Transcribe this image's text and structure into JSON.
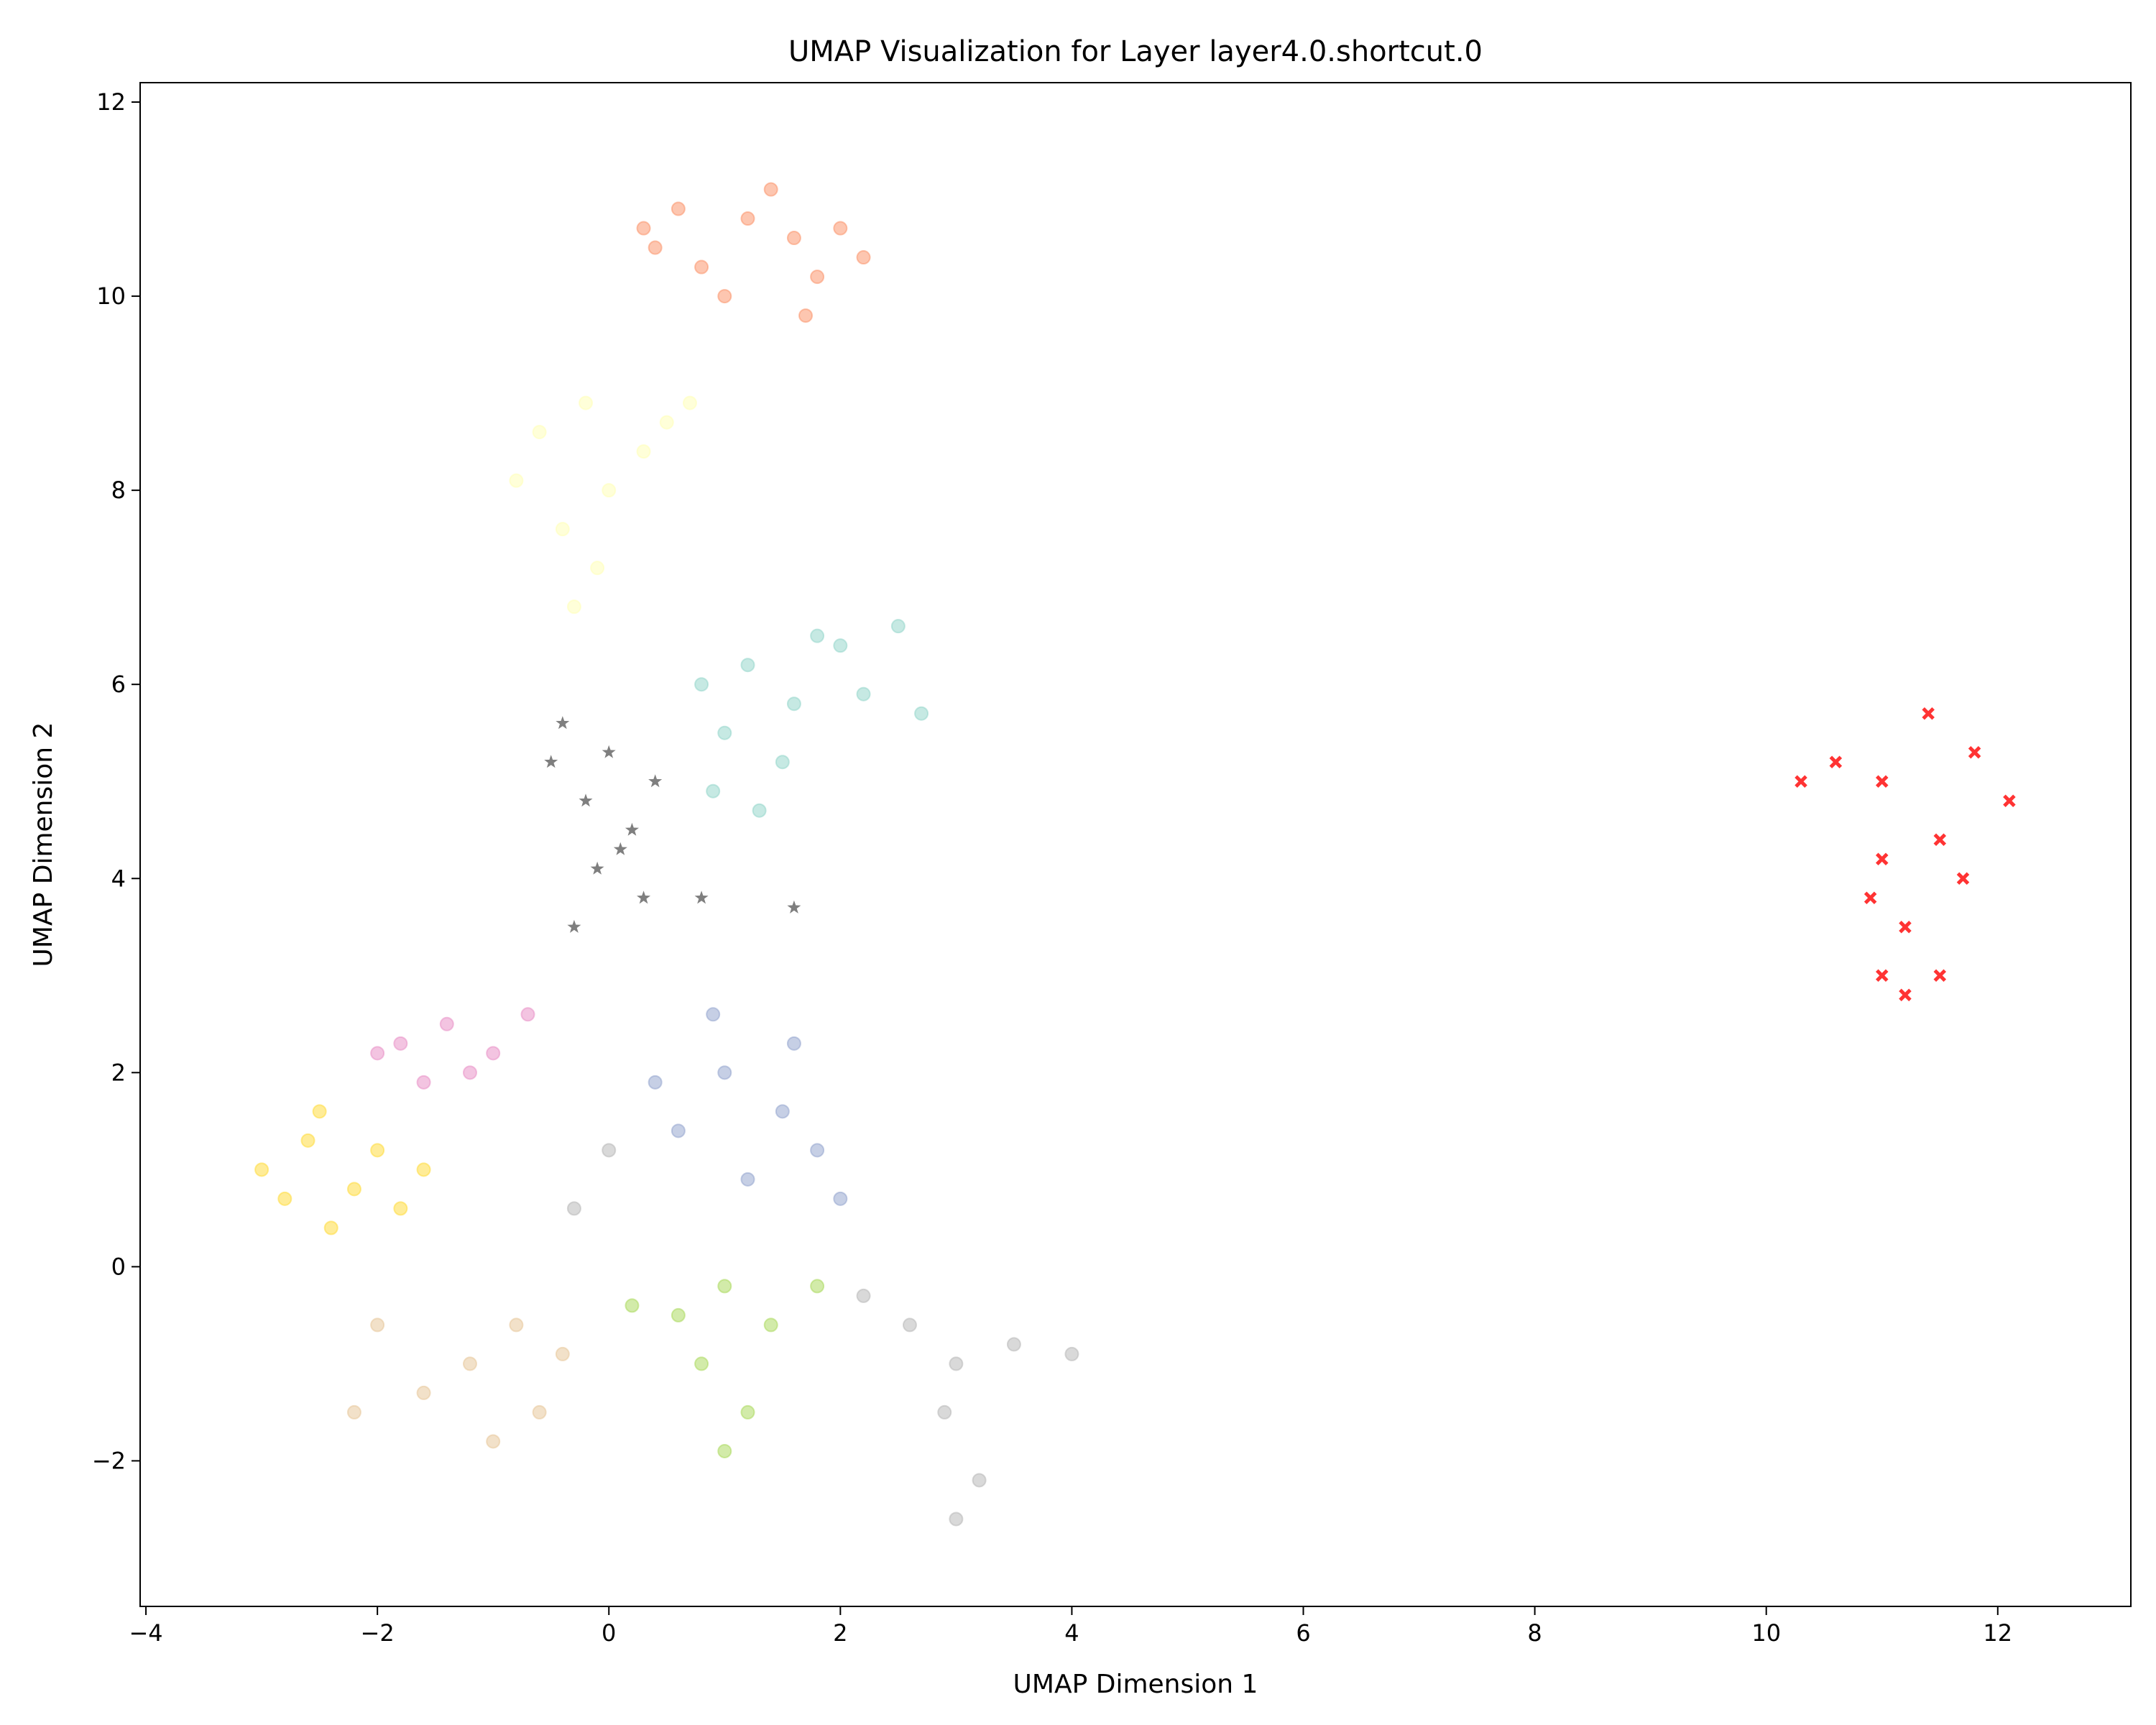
{
  "chart_data": {
    "type": "scatter",
    "title": "UMAP Visualization for Layer layer4.0.shortcut.0",
    "xlabel": "UMAP Dimension 1",
    "ylabel": "UMAP Dimension 2",
    "xlim": [
      -4.05,
      13.15
    ],
    "ylim": [
      -3.5,
      12.2
    ],
    "xticks": [
      -4,
      -2,
      0,
      2,
      4,
      6,
      8,
      10,
      12
    ],
    "yticks": [
      -2,
      0,
      2,
      4,
      6,
      8,
      10,
      12
    ],
    "grid": false,
    "legend": "none",
    "point_alpha": 0.5,
    "series": [
      {
        "name": "orange-cluster",
        "color": "#fc8d62",
        "marker": "circle",
        "points": [
          [
            1.2,
            10.8
          ],
          [
            0.6,
            10.9
          ],
          [
            1.6,
            10.6
          ],
          [
            0.4,
            10.5
          ],
          [
            1.8,
            10.2
          ],
          [
            1.0,
            10.0
          ],
          [
            1.4,
            11.1
          ],
          [
            2.0,
            10.7
          ],
          [
            0.8,
            10.3
          ],
          [
            1.7,
            9.8
          ],
          [
            0.3,
            10.7
          ],
          [
            2.2,
            10.4
          ]
        ]
      },
      {
        "name": "light-yellow-cluster",
        "color": "#ffffb3",
        "marker": "circle",
        "points": [
          [
            -0.6,
            8.6
          ],
          [
            -0.2,
            8.9
          ],
          [
            0.3,
            8.4
          ],
          [
            -0.8,
            8.1
          ],
          [
            0.0,
            8.0
          ],
          [
            -0.4,
            7.6
          ],
          [
            0.5,
            8.7
          ],
          [
            -0.1,
            7.2
          ],
          [
            -0.3,
            6.8
          ],
          [
            0.7,
            8.9
          ]
        ]
      },
      {
        "name": "teal-cluster",
        "color": "#8dd3c7",
        "marker": "circle",
        "points": [
          [
            1.2,
            6.2
          ],
          [
            1.6,
            5.8
          ],
          [
            2.0,
            6.4
          ],
          [
            2.5,
            6.6
          ],
          [
            2.7,
            5.7
          ],
          [
            1.0,
            5.5
          ],
          [
            1.5,
            5.2
          ],
          [
            0.9,
            4.9
          ],
          [
            2.2,
            5.9
          ],
          [
            1.8,
            6.5
          ],
          [
            0.8,
            6.0
          ],
          [
            1.3,
            4.7
          ]
        ]
      },
      {
        "name": "black-cluster",
        "color": "#000000",
        "marker": "star",
        "points": [
          [
            -0.4,
            5.6
          ],
          [
            0.0,
            5.3
          ],
          [
            -0.2,
            4.8
          ],
          [
            0.2,
            4.5
          ],
          [
            -0.1,
            4.1
          ],
          [
            0.3,
            3.8
          ],
          [
            -0.3,
            3.5
          ],
          [
            0.4,
            5.0
          ],
          [
            0.8,
            3.8
          ],
          [
            1.6,
            3.7
          ],
          [
            -0.5,
            5.2
          ],
          [
            0.1,
            4.3
          ]
        ]
      },
      {
        "name": "pink-cluster",
        "color": "#e78ac3",
        "marker": "circle",
        "points": [
          [
            -1.8,
            2.3
          ],
          [
            -1.4,
            2.5
          ],
          [
            -1.0,
            2.2
          ],
          [
            -1.6,
            1.9
          ],
          [
            -0.7,
            2.6
          ],
          [
            -1.2,
            2.0
          ],
          [
            -2.0,
            2.2
          ]
        ]
      },
      {
        "name": "yellow-cluster",
        "color": "#ffd92f",
        "marker": "circle",
        "points": [
          [
            -3.0,
            1.0
          ],
          [
            -2.6,
            1.3
          ],
          [
            -2.2,
            0.8
          ],
          [
            -2.5,
            1.6
          ],
          [
            -2.0,
            1.2
          ],
          [
            -1.8,
            0.6
          ],
          [
            -2.4,
            0.4
          ],
          [
            -2.8,
            0.7
          ],
          [
            -1.6,
            1.0
          ]
        ]
      },
      {
        "name": "blue-cluster",
        "color": "#8da0cb",
        "marker": "circle",
        "points": [
          [
            1.0,
            2.0
          ],
          [
            1.5,
            1.6
          ],
          [
            1.8,
            1.2
          ],
          [
            0.6,
            1.4
          ],
          [
            1.2,
            0.9
          ],
          [
            2.0,
            0.7
          ],
          [
            0.9,
            2.6
          ],
          [
            0.4,
            1.9
          ],
          [
            1.6,
            2.3
          ]
        ]
      },
      {
        "name": "gray-cluster",
        "color": "#b3b3b3",
        "marker": "circle",
        "points": [
          [
            2.6,
            -0.6
          ],
          [
            3.0,
            -1.0
          ],
          [
            3.5,
            -0.8
          ],
          [
            4.0,
            -0.9
          ],
          [
            2.9,
            -1.5
          ],
          [
            3.2,
            -2.2
          ],
          [
            3.0,
            -2.6
          ],
          [
            2.2,
            -0.3
          ],
          [
            0.0,
            1.2
          ],
          [
            -0.3,
            0.6
          ]
        ]
      },
      {
        "name": "green-cluster",
        "color": "#a6d854",
        "marker": "circle",
        "points": [
          [
            0.6,
            -0.5
          ],
          [
            1.0,
            -0.2
          ],
          [
            1.4,
            -0.6
          ],
          [
            0.8,
            -1.0
          ],
          [
            1.2,
            -1.5
          ],
          [
            1.0,
            -1.9
          ],
          [
            1.8,
            -0.2
          ],
          [
            0.2,
            -0.4
          ]
        ]
      },
      {
        "name": "tan-cluster",
        "color": "#e5c494",
        "marker": "circle",
        "points": [
          [
            -1.2,
            -1.0
          ],
          [
            -0.8,
            -0.6
          ],
          [
            -1.6,
            -1.3
          ],
          [
            -2.2,
            -1.5
          ],
          [
            -0.6,
            -1.5
          ],
          [
            -1.0,
            -1.8
          ],
          [
            -0.4,
            -0.9
          ],
          [
            -2.0,
            -0.6
          ]
        ]
      },
      {
        "name": "red-cluster",
        "color": "#ff0000",
        "marker": "x",
        "points": [
          [
            10.6,
            5.2
          ],
          [
            11.0,
            5.0
          ],
          [
            11.4,
            5.7
          ],
          [
            11.8,
            5.3
          ],
          [
            12.1,
            4.8
          ],
          [
            11.5,
            4.4
          ],
          [
            11.0,
            4.2
          ],
          [
            11.2,
            3.5
          ],
          [
            11.5,
            3.0
          ],
          [
            11.0,
            3.0
          ],
          [
            10.9,
            3.8
          ],
          [
            11.7,
            4.0
          ],
          [
            10.3,
            5.0
          ],
          [
            11.2,
            2.8
          ]
        ]
      }
    ]
  }
}
